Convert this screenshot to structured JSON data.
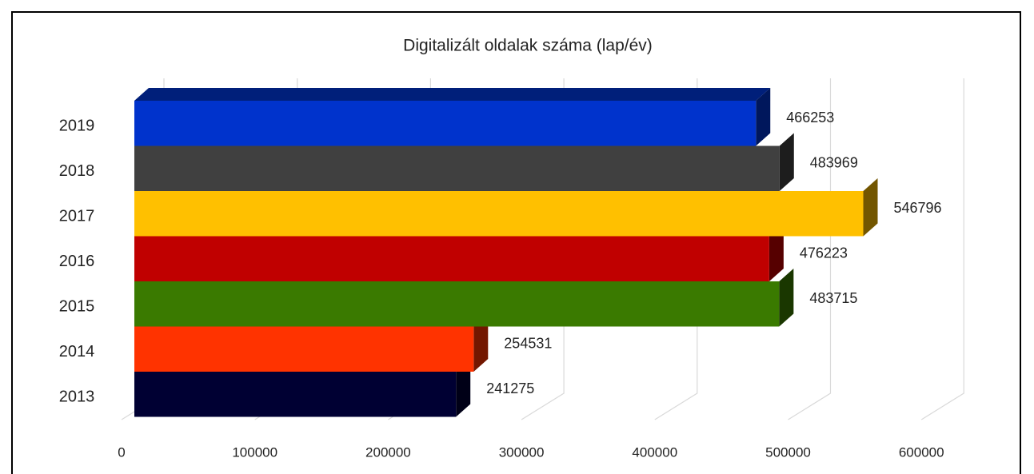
{
  "chart_data": {
    "type": "bar3d",
    "orientation": "horizontal",
    "title": "Digitalizált oldalak száma (lap/év)",
    "categories": [
      "2013",
      "2014",
      "2015",
      "2016",
      "2017",
      "2018",
      "2019"
    ],
    "values": [
      241275,
      254531,
      483715,
      476223,
      546796,
      483969,
      466253
    ],
    "colors": [
      "#000033",
      "#ff3300",
      "#3a7a00",
      "#c00000",
      "#ffc000",
      "#404040",
      "#0033cc"
    ],
    "xlim": [
      0,
      600000
    ],
    "xticks": [
      0,
      100000,
      200000,
      300000,
      400000,
      500000,
      600000
    ],
    "grid": true
  }
}
